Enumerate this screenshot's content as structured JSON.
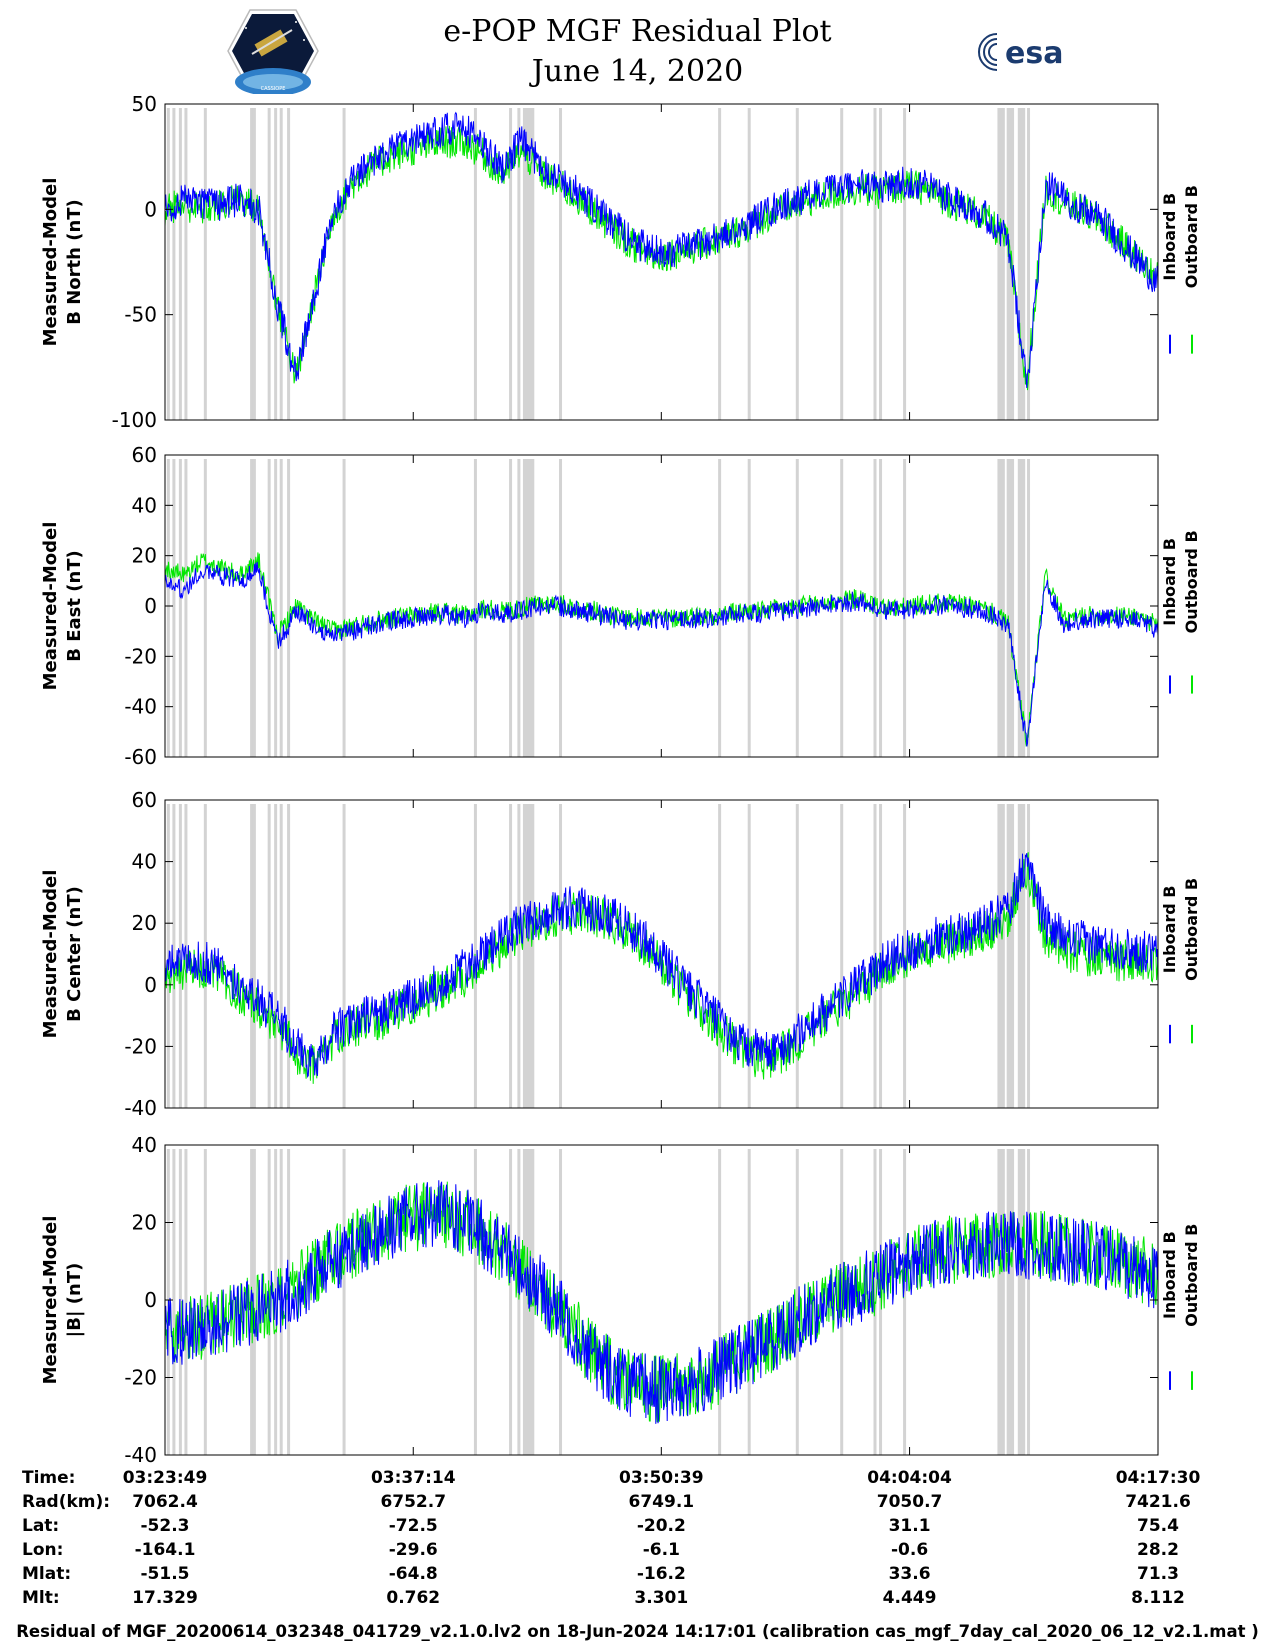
{
  "header": {
    "title_line1": "e-POP MGF Residual Plot",
    "title_line2": "June 14, 2020",
    "left_logo_text": "CASSIOPE",
    "right_logo_text": "esa"
  },
  "colors": {
    "inboard": "#0000ff",
    "outboard": "#00e600",
    "gap_bands": "#d3d3d3"
  },
  "chart_data": [
    {
      "type": "line",
      "ylabel": "Measured-Model\nB North (nT)",
      "ylim": [
        -100,
        50
      ],
      "yticks": [
        50,
        0,
        -50,
        -100
      ],
      "xlim": [
        "03:23:49",
        "04:17:30"
      ],
      "xticks": [
        "03:23:49",
        "03:37:14",
        "03:50:39",
        "04:04:04",
        "04:17:30"
      ],
      "legend": [
        "Inboard B",
        "Outboard B"
      ],
      "legend_placement": "right",
      "series": [
        {
          "name": "Inboard B",
          "color": "#0000ff",
          "x": [
            0,
            1,
            2,
            3,
            4,
            5,
            6,
            7,
            8,
            9,
            10,
            11,
            12,
            13,
            14,
            15,
            16,
            17,
            18,
            19,
            20,
            21,
            22,
            23,
            24,
            25,
            26,
            27,
            28,
            29,
            30,
            31,
            32,
            33,
            34,
            35,
            36,
            37,
            38,
            39,
            40,
            41,
            42,
            43,
            44,
            45,
            46,
            47,
            48,
            49,
            50,
            51,
            52,
            53
          ],
          "values": [
            0,
            5,
            3,
            2,
            5,
            0,
            -45,
            -80,
            -40,
            0,
            15,
            22,
            28,
            32,
            35,
            38,
            38,
            30,
            20,
            32,
            22,
            15,
            8,
            0,
            -8,
            -15,
            -20,
            -20,
            -18,
            -15,
            -12,
            -8,
            -2,
            2,
            5,
            8,
            10,
            12,
            10,
            12,
            13,
            10,
            5,
            2,
            -5,
            -15,
            -85,
            12,
            5,
            0,
            -5,
            -15,
            -25,
            -35
          ]
        },
        {
          "name": "Outboard B",
          "color": "#00e600",
          "x": [
            0,
            1,
            2,
            3,
            4,
            5,
            6,
            7,
            8,
            9,
            10,
            11,
            12,
            13,
            14,
            15,
            16,
            17,
            18,
            19,
            20,
            21,
            22,
            23,
            24,
            25,
            26,
            27,
            28,
            29,
            30,
            31,
            32,
            33,
            34,
            35,
            36,
            37,
            38,
            39,
            40,
            41,
            42,
            43,
            44,
            45,
            46,
            47,
            48,
            49,
            50,
            51,
            52,
            53
          ],
          "values": [
            0,
            2,
            0,
            2,
            5,
            0,
            -45,
            -80,
            -40,
            -2,
            12,
            20,
            25,
            28,
            30,
            32,
            32,
            26,
            16,
            28,
            18,
            12,
            5,
            -2,
            -10,
            -17,
            -22,
            -21,
            -19,
            -16,
            -13,
            -9,
            -4,
            0,
            3,
            6,
            8,
            10,
            8,
            10,
            11,
            8,
            3,
            0,
            -6,
            -16,
            -85,
            10,
            3,
            -1,
            -6,
            -15,
            -24,
            -33
          ]
        }
      ],
      "amplitude": 8
    },
    {
      "type": "line",
      "ylabel": "Measured-Model\nB East (nT)",
      "ylim": [
        -60,
        60
      ],
      "yticks": [
        60,
        40,
        20,
        0,
        -20,
        -40,
        -60
      ],
      "xlim": [
        "03:23:49",
        "04:17:30"
      ],
      "xticks": [
        "03:23:49",
        "03:37:14",
        "03:50:39",
        "04:04:04",
        "04:17:30"
      ],
      "legend": [
        "Inboard B",
        "Outboard B"
      ],
      "legend_placement": "right",
      "series": [
        {
          "name": "Inboard B",
          "color": "#0000ff",
          "x": [
            0,
            1,
            2,
            3,
            4,
            5,
            6,
            7,
            8,
            9,
            10,
            11,
            12,
            13,
            14,
            15,
            16,
            17,
            18,
            19,
            20,
            21,
            22,
            23,
            24,
            25,
            26,
            27,
            28,
            29,
            30,
            31,
            32,
            33,
            34,
            35,
            36,
            37,
            38,
            39,
            40,
            41,
            42,
            43,
            44,
            45,
            46,
            47,
            48,
            49,
            50,
            51,
            52,
            53
          ],
          "values": [
            12,
            5,
            15,
            12,
            10,
            15,
            -15,
            -2,
            -8,
            -12,
            -10,
            -8,
            -6,
            -5,
            -4,
            -3,
            -5,
            -2,
            -3,
            -2,
            0,
            0,
            -2,
            -3,
            -5,
            -6,
            -5,
            -6,
            -5,
            -5,
            -4,
            -3,
            -3,
            -2,
            -1,
            0,
            1,
            2,
            -1,
            -2,
            -1,
            0,
            0,
            -1,
            -3,
            -8,
            -55,
            10,
            -8,
            -5,
            -5,
            -5,
            -5,
            -10
          ]
        },
        {
          "name": "Outboard B",
          "color": "#00e600",
          "x": [
            0,
            1,
            2,
            3,
            4,
            5,
            6,
            7,
            8,
            9,
            10,
            11,
            12,
            13,
            14,
            15,
            16,
            17,
            18,
            19,
            20,
            21,
            22,
            23,
            24,
            25,
            26,
            27,
            28,
            29,
            30,
            31,
            32,
            33,
            34,
            35,
            36,
            37,
            38,
            39,
            40,
            41,
            42,
            43,
            44,
            45,
            46,
            47,
            48,
            49,
            50,
            51,
            52,
            53
          ],
          "values": [
            15,
            12,
            18,
            15,
            12,
            18,
            -12,
            0,
            -6,
            -10,
            -8,
            -6,
            -5,
            -4,
            -3,
            -2,
            -4,
            -1,
            -2,
            -1,
            1,
            1,
            -1,
            -2,
            -4,
            -5,
            -4,
            -5,
            -4,
            -4,
            -3,
            -2,
            -2,
            -1,
            0,
            1,
            2,
            3,
            0,
            -1,
            0,
            1,
            1,
            0,
            -2,
            -7,
            -55,
            12,
            -6,
            -4,
            -4,
            -4,
            -4,
            -8
          ]
        }
      ],
      "amplitude": 4
    },
    {
      "type": "line",
      "ylabel": "Measured-Model\nB Center (nT)",
      "ylim": [
        -40,
        60
      ],
      "yticks": [
        60,
        40,
        20,
        0,
        -20,
        -40
      ],
      "xlim": [
        "03:23:49",
        "04:17:30"
      ],
      "xticks": [
        "03:23:49",
        "03:37:14",
        "03:50:39",
        "04:04:04",
        "04:17:30"
      ],
      "legend": [
        "Inboard B",
        "Outboard B"
      ],
      "legend_placement": "right",
      "series": [
        {
          "name": "Inboard B",
          "color": "#0000ff",
          "x": [
            0,
            1,
            2,
            3,
            4,
            5,
            6,
            7,
            8,
            9,
            10,
            11,
            12,
            13,
            14,
            15,
            16,
            17,
            18,
            19,
            20,
            21,
            22,
            23,
            24,
            25,
            26,
            27,
            28,
            29,
            30,
            31,
            32,
            33,
            34,
            35,
            36,
            37,
            38,
            39,
            40,
            41,
            42,
            43,
            44,
            45,
            46,
            47,
            48,
            49,
            50,
            51,
            52,
            53
          ],
          "values": [
            5,
            8,
            8,
            5,
            0,
            -5,
            -10,
            -20,
            -25,
            -15,
            -12,
            -10,
            -8,
            -5,
            -2,
            2,
            5,
            10,
            15,
            20,
            22,
            25,
            25,
            24,
            22,
            18,
            12,
            5,
            -2,
            -8,
            -15,
            -20,
            -22,
            -20,
            -15,
            -10,
            -5,
            0,
            5,
            10,
            12,
            15,
            16,
            18,
            20,
            25,
            40,
            20,
            15,
            14,
            13,
            12,
            11,
            10
          ]
        },
        {
          "name": "Outboard B",
          "color": "#00e600",
          "x": [
            0,
            1,
            2,
            3,
            4,
            5,
            6,
            7,
            8,
            9,
            10,
            11,
            12,
            13,
            14,
            15,
            16,
            17,
            18,
            19,
            20,
            21,
            22,
            23,
            24,
            25,
            26,
            27,
            28,
            29,
            30,
            31,
            32,
            33,
            34,
            35,
            36,
            37,
            38,
            39,
            40,
            41,
            42,
            43,
            44,
            45,
            46,
            47,
            48,
            49,
            50,
            51,
            52,
            53
          ],
          "values": [
            2,
            5,
            5,
            2,
            -3,
            -8,
            -13,
            -22,
            -27,
            -17,
            -14,
            -12,
            -10,
            -7,
            -4,
            0,
            3,
            8,
            13,
            18,
            20,
            23,
            23,
            22,
            20,
            16,
            10,
            3,
            -4,
            -10,
            -17,
            -22,
            -24,
            -22,
            -17,
            -12,
            -7,
            -2,
            3,
            8,
            10,
            13,
            14,
            16,
            18,
            22,
            38,
            16,
            11,
            10,
            9,
            8,
            7,
            6
          ]
        }
      ],
      "amplitude": 7
    },
    {
      "type": "line",
      "ylabel": "Measured-Model\n|B| (nT)",
      "ylim": [
        -40,
        40
      ],
      "yticks": [
        40,
        20,
        0,
        -20,
        -40
      ],
      "xlim": [
        "03:23:49",
        "04:17:30"
      ],
      "xticks": [
        "03:23:49",
        "03:37:14",
        "03:50:39",
        "04:04:04",
        "04:17:30"
      ],
      "legend": [
        "Inboard B",
        "Outboard B"
      ],
      "legend_placement": "right",
      "series": [
        {
          "name": "Inboard B",
          "color": "#0000ff",
          "x": [
            0,
            1,
            2,
            3,
            4,
            5,
            6,
            7,
            8,
            9,
            10,
            11,
            12,
            13,
            14,
            15,
            16,
            17,
            18,
            19,
            20,
            21,
            22,
            23,
            24,
            25,
            26,
            27,
            28,
            29,
            30,
            31,
            32,
            33,
            34,
            35,
            36,
            37,
            38,
            39,
            40,
            41,
            42,
            43,
            44,
            45,
            46,
            47,
            48,
            49,
            50,
            51,
            52,
            53
          ],
          "values": [
            -8,
            -8,
            -7,
            -6,
            -4,
            -2,
            0,
            3,
            7,
            11,
            14,
            17,
            19,
            21,
            22,
            22,
            20,
            17,
            13,
            8,
            3,
            -3,
            -9,
            -15,
            -19,
            -22,
            -23,
            -23,
            -22,
            -20,
            -17,
            -14,
            -11,
            -8,
            -5,
            -2,
            1,
            3,
            5,
            8,
            10,
            12,
            13,
            14,
            14,
            14,
            14,
            14,
            13,
            12,
            11,
            10,
            8,
            6
          ]
        },
        {
          "name": "Outboard B",
          "color": "#00e600",
          "x": [
            0,
            1,
            2,
            3,
            4,
            5,
            6,
            7,
            8,
            9,
            10,
            11,
            12,
            13,
            14,
            15,
            16,
            17,
            18,
            19,
            20,
            21,
            22,
            23,
            24,
            25,
            26,
            27,
            28,
            29,
            30,
            31,
            32,
            33,
            34,
            35,
            36,
            37,
            38,
            39,
            40,
            41,
            42,
            43,
            44,
            45,
            46,
            47,
            48,
            49,
            50,
            51,
            52,
            53
          ],
          "values": [
            -7,
            -8,
            -7,
            -6,
            -4,
            -2,
            0,
            3,
            7,
            11,
            14,
            17,
            19,
            21,
            22,
            22,
            20,
            17,
            13,
            8,
            3,
            -3,
            -9,
            -15,
            -19,
            -22,
            -23,
            -23,
            -22,
            -20,
            -17,
            -14,
            -11,
            -8,
            -5,
            -2,
            1,
            3,
            5,
            8,
            10,
            12,
            13,
            14,
            14,
            14,
            14,
            14,
            13,
            12,
            11,
            10,
            8,
            6
          ]
        }
      ],
      "amplitude": 9
    }
  ],
  "gap_bands_minutes": [
    0.1,
    0.4,
    0.75,
    1.05,
    2.1,
    4.6,
    4.75,
    5.55,
    5.9,
    6.2,
    6.6,
    9.6,
    16.7,
    18.6,
    19.05,
    19.35,
    19.8,
    21.3,
    29.9,
    31.5,
    34.1,
    36.5,
    38.3,
    38.6,
    39.9,
    45.0,
    45.5,
    46.1,
    46.6
  ],
  "gap_band_width_minutes": [
    0.15,
    0.15,
    0.15,
    0.15,
    0.15,
    0.15,
    0.15,
    0.15,
    0.15,
    0.15,
    0.15,
    0.15,
    0.15,
    0.15,
    0.15,
    0.6,
    0.15,
    0.15,
    0.15,
    0.15,
    0.15,
    0.15,
    0.15,
    0.15,
    0.15,
    0.4,
    0.4,
    0.4,
    0.15
  ],
  "ephemeris": {
    "labels": [
      "Time:",
      "Rad(km):",
      "Lat:",
      "Lon:",
      "Mlat:",
      "Mlt:"
    ],
    "columns": [
      [
        "03:23:49",
        "7062.4",
        "-52.3",
        "-164.1",
        "-51.5",
        "17.329"
      ],
      [
        "03:37:14",
        "6752.7",
        "-72.5",
        "-29.6",
        "-64.8",
        "0.762"
      ],
      [
        "03:50:39",
        "6749.1",
        "-20.2",
        "-6.1",
        "-16.2",
        "3.301"
      ],
      [
        "04:04:04",
        "7050.7",
        "31.1",
        "-0.6",
        "33.6",
        "4.449"
      ],
      [
        "04:17:30",
        "7421.6",
        "75.4",
        "28.2",
        "71.3",
        "8.112"
      ]
    ]
  },
  "footer": "Residual of MGF_20200614_032348_041729_v2.1.0.lv2 on 18-Jun-2024 14:17:01 (calibration cas_mgf_7day_cal_2020_06_12_v2.1.mat )"
}
